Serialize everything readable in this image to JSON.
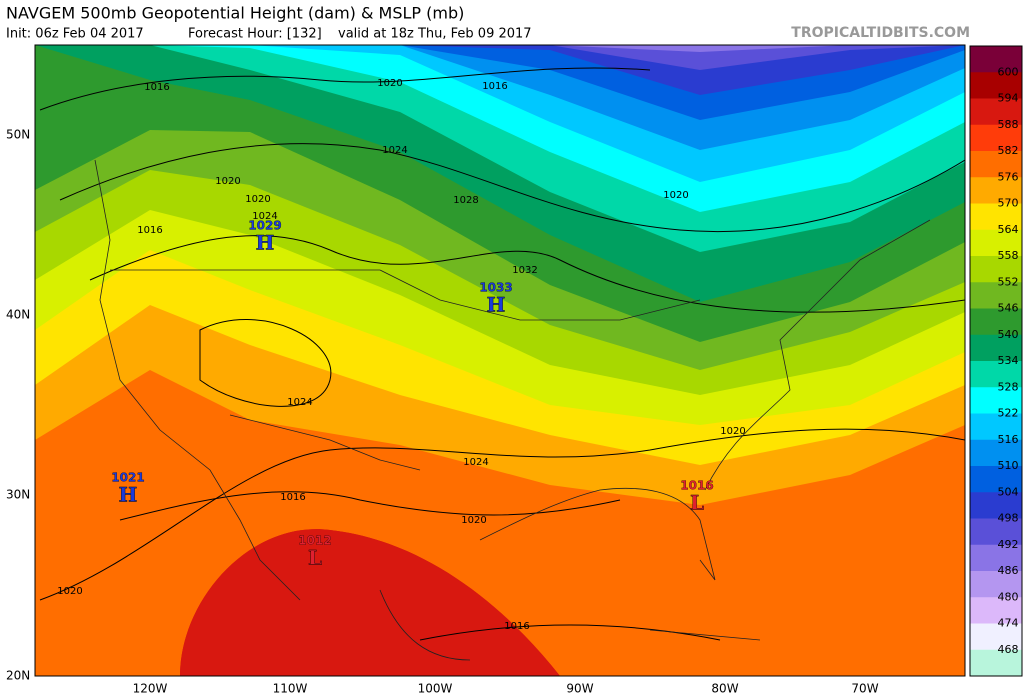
{
  "header": {
    "title": "NAVGEM 500mb Geopotential Height (dam) & MSLP (mb)",
    "init": "Init: 06z Feb 04 2017",
    "forecast_hour": "Forecast Hour: [132]",
    "valid": "valid at 18z Thu, Feb 09 2017",
    "watermark": "TROPICALTIDBITS.COM"
  },
  "colorbar": {
    "levels": [
      600,
      594,
      588,
      582,
      576,
      570,
      564,
      558,
      552,
      546,
      540,
      534,
      528,
      522,
      516,
      510,
      504,
      498,
      492,
      486,
      480,
      474,
      468
    ],
    "colors": [
      "#7a0038",
      "#a80000",
      "#d81810",
      "#ff3c0a",
      "#ff6e00",
      "#ffaa00",
      "#ffe400",
      "#d8f000",
      "#a8d800",
      "#70b820",
      "#2e9a2e",
      "#00a060",
      "#00d8a8",
      "#00ffff",
      "#00c8ff",
      "#0090f0",
      "#0060e0",
      "#2a3cd0",
      "#5a50d8",
      "#8a74e6",
      "#b496f0",
      "#dcb8fa",
      "#f0f0ff",
      "#b8f5dc"
    ]
  },
  "map": {
    "lat_labels": [
      "50N",
      "40N",
      "30N",
      "20N"
    ],
    "lon_labels": [
      "120W",
      "110W",
      "100W",
      "90W",
      "80W",
      "70W"
    ],
    "pressure_centers": [
      {
        "pressure": 1029,
        "symbol": "H"
      },
      {
        "pressure": 1033,
        "symbol": "H"
      },
      {
        "pressure": 1021,
        "symbol": "H"
      },
      {
        "pressure": 1012,
        "symbol": "L"
      },
      {
        "pressure": 1016,
        "symbol": "L"
      }
    ],
    "isobar_labels": [
      1016,
      1020,
      1016,
      1024,
      1028,
      1032,
      1020,
      1020,
      1024,
      1016,
      1020,
      1024,
      1024,
      1020,
      1016,
      1020,
      1016,
      1020
    ]
  }
}
